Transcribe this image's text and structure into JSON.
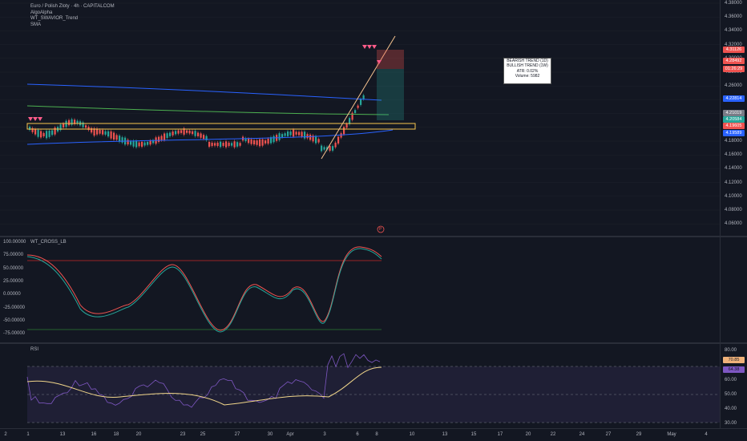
{
  "colors": {
    "bull": "#26a69a",
    "bear": "#ef5350",
    "background": "#131722",
    "grid": "#1e222d",
    "mark": "#ff5c8a",
    "trendline": "#f6c38f",
    "box": "#f9c74f"
  },
  "main_legend": {
    "title": "Euro / Polish Zloty · 4h · CAPITALCOM",
    "line2": "AlgoAlpha",
    "line3": "WT_SWAVIOR_Trend",
    "line4": "SMA"
  },
  "info_box": {
    "line1": "BEARISH TREND (1D)",
    "line2": "BULLISH TREND (1W)",
    "line3": "ATR: 0.02%",
    "line4": "Volume: 5982"
  },
  "price_axis": {
    "ticks": [
      "4.38000",
      "4.36000",
      "4.34000",
      "4.32000",
      "4.30000",
      "4.28000",
      "4.26000",
      "4.24000",
      "4.22000",
      "4.20000",
      "4.18000",
      "4.16000",
      "4.14000",
      "4.12000",
      "4.10000",
      "4.08000",
      "4.06000"
    ]
  },
  "price_badges": [
    {
      "label": "4.31126",
      "color": "#ef5350"
    },
    {
      "label": "4.28492",
      "color": "#ef5350"
    },
    {
      "label": "01:26:29",
      "color": "#ef5350"
    },
    {
      "label": "4.22814",
      "color": "#2962ff"
    },
    {
      "label": "4.21019",
      "color": "#787b86"
    },
    {
      "label": "4.20584",
      "color": "#26a69a"
    },
    {
      "label": "4.19605",
      "color": "#ef5350"
    },
    {
      "label": "4.19589",
      "color": "#2962ff"
    }
  ],
  "osc_legend": "WT_CROSS_LB",
  "osc_axis": {
    "ticks": [
      "100.00000",
      "75.00000",
      "50.00000",
      "25.00000",
      "0.00000",
      "-25.00000",
      "-50.00000",
      "-75.00000"
    ]
  },
  "rsi_legend": "RSI",
  "rsi_axis": {
    "ticks": [
      "80.00",
      "60.00",
      "50.00",
      "40.00",
      "30.00"
    ]
  },
  "rsi_badges": [
    {
      "label": "70.85",
      "color": "#f0b27a"
    },
    {
      "label": "64.38",
      "color": "#7e57c2"
    }
  ],
  "time_axis": {
    "ticks": [
      "1",
      "13",
      "16",
      "18",
      "20",
      "23",
      "25",
      "27",
      "30",
      "Apr",
      "3",
      "6",
      "8",
      "10",
      "13",
      "15",
      "17",
      "20",
      "22",
      "24",
      "27",
      "29",
      "May",
      "4"
    ]
  },
  "time_marker": "2",
  "indicator_mark": "P"
}
